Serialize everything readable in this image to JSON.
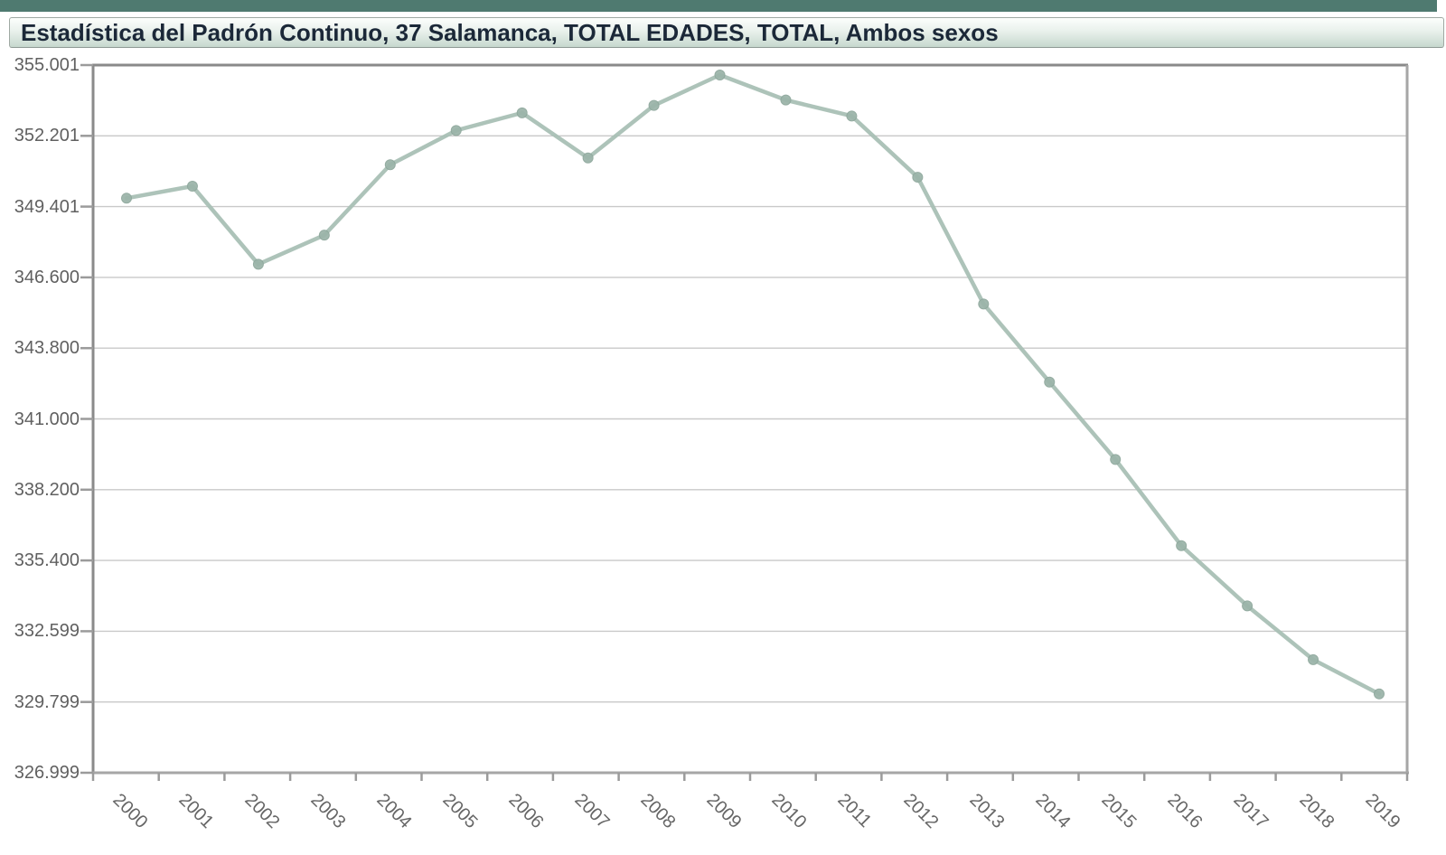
{
  "title_bar": {
    "text": "Estadística del Padrón Continuo, 37 Salamanca, TOTAL EDADES, TOTAL, Ambos sexos"
  },
  "colors": {
    "accent_strip": "#4f7a70",
    "title_bg_top": "#fcfefc",
    "title_bg_bottom": "#c6d8ce",
    "title_text": "#1b2838",
    "line": "#a9c0b5",
    "marker_fill": "#9cb5aa",
    "marker_edge": "#8fa89d",
    "gridline": "#c9c9c9",
    "axis_dark": "#8a8a8a",
    "axis_light": "#a6a6a6",
    "tick": "#9b9b9b",
    "tick_label": "#606060"
  },
  "chart_data": {
    "type": "line",
    "title": "Estadística del Padrón Continuo, 37 Salamanca, TOTAL EDADES, TOTAL, Ambos sexos",
    "xlabel": "",
    "ylabel": "",
    "x": [
      "2000",
      "2001",
      "2002",
      "2003",
      "2004",
      "2005",
      "2006",
      "2007",
      "2008",
      "2009",
      "2010",
      "2011",
      "2012",
      "2013",
      "2014",
      "2015",
      "2016",
      "2017",
      "2018",
      "2019"
    ],
    "series": [
      {
        "name": "Ambos sexos",
        "values": [
          349733,
          350209,
          347120,
          348271,
          351059,
          352414,
          353110,
          351326,
          353404,
          354608,
          353619,
          352986,
          350564,
          345548,
          342459,
          339395,
          335985,
          333603,
          331473,
          330119
        ]
      }
    ],
    "ylim": [
      326999,
      355001
    ],
    "yticks": [
      {
        "value": 355001,
        "label": "355.001"
      },
      {
        "value": 352201,
        "label": "352.201"
      },
      {
        "value": 349401,
        "label": "349.401"
      },
      {
        "value": 346600,
        "label": "346.600"
      },
      {
        "value": 343800,
        "label": "343.800"
      },
      {
        "value": 341000,
        "label": "341.000"
      },
      {
        "value": 338200,
        "label": "338.200"
      },
      {
        "value": 335400,
        "label": "335.400"
      },
      {
        "value": 332599,
        "label": "332.599"
      },
      {
        "value": 329799,
        "label": "329.799"
      },
      {
        "value": 326999,
        "label": "326.999"
      }
    ],
    "grid": "horizontal",
    "legend": "none",
    "x_tick_style": "boundary",
    "x_label_rotation_deg": 45
  }
}
